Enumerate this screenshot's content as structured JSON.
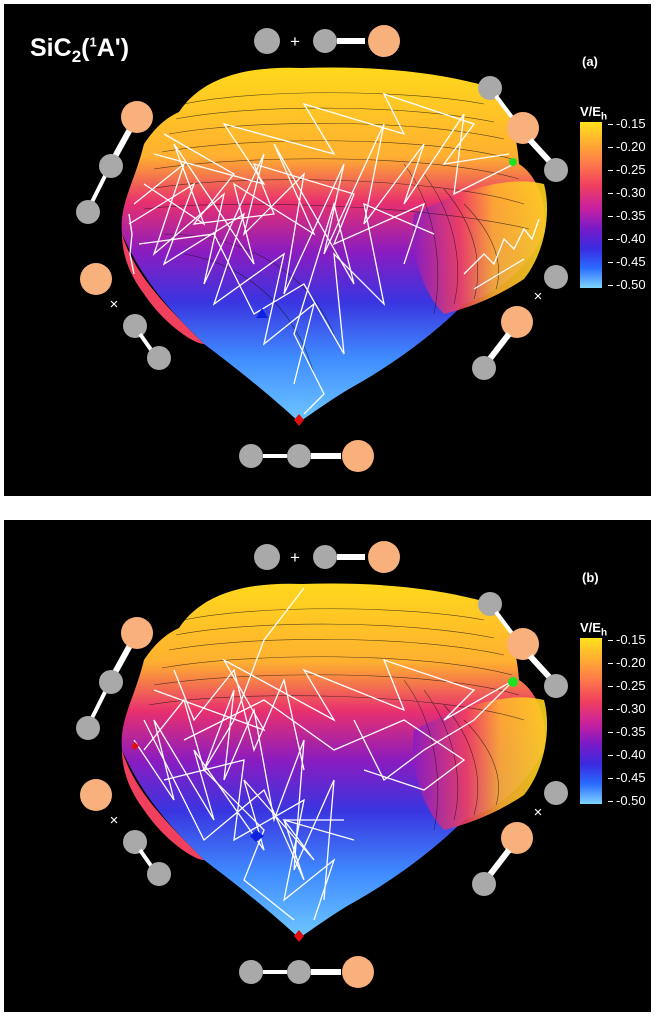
{
  "title": {
    "main": "SiC",
    "sub": "2",
    "open": "(",
    "sup": "1",
    "state": "A')"
  },
  "colorbar": {
    "label_main": "V/E",
    "label_sub": "h",
    "ticks": [
      "-0.15",
      "-0.20",
      "-0.25",
      "-0.30",
      "-0.35",
      "-0.40",
      "-0.45",
      "-0.50"
    ],
    "colors": {
      "top": "#ffe21c",
      "mid": "#c820a0",
      "bottom": "#7fd4ff"
    }
  },
  "panels": [
    {
      "label": "(a)"
    },
    {
      "label": "(b)"
    }
  ],
  "atom_colors": {
    "silicon": "#f8b07c",
    "carbon": "#a9a9a9",
    "bond": "#ffffff"
  },
  "markers": {
    "minimum": "#e01010",
    "transition": "#1020e0",
    "exit": "#20e020"
  },
  "configurations": {
    "top": "+",
    "left_side": "×",
    "right_side": "×"
  }
}
